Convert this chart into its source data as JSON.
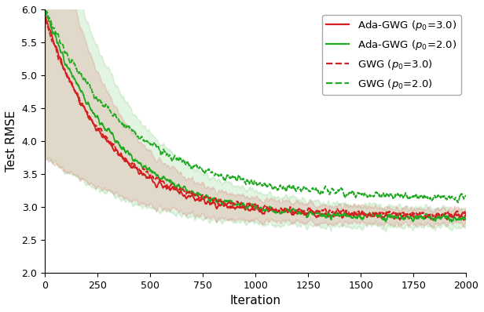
{
  "title": "",
  "xlabel": "Iteration",
  "ylabel": "Test RMSE",
  "xlim": [
    0,
    2000
  ],
  "ylim": [
    2.0,
    6.0
  ],
  "xticks": [
    0,
    250,
    500,
    750,
    1000,
    1250,
    1500,
    1750,
    2000
  ],
  "yticks": [
    2.0,
    2.5,
    3.0,
    3.5,
    4.0,
    4.5,
    5.0,
    5.5,
    6.0
  ],
  "n_iter": 2000,
  "colors": {
    "red": "#d42020",
    "green": "#22aa22"
  },
  "fill_alpha_red": 0.13,
  "fill_alpha_green": 0.13,
  "line_width": 1.3,
  "figsize": [
    6.16,
    3.98
  ],
  "dpi": 100
}
